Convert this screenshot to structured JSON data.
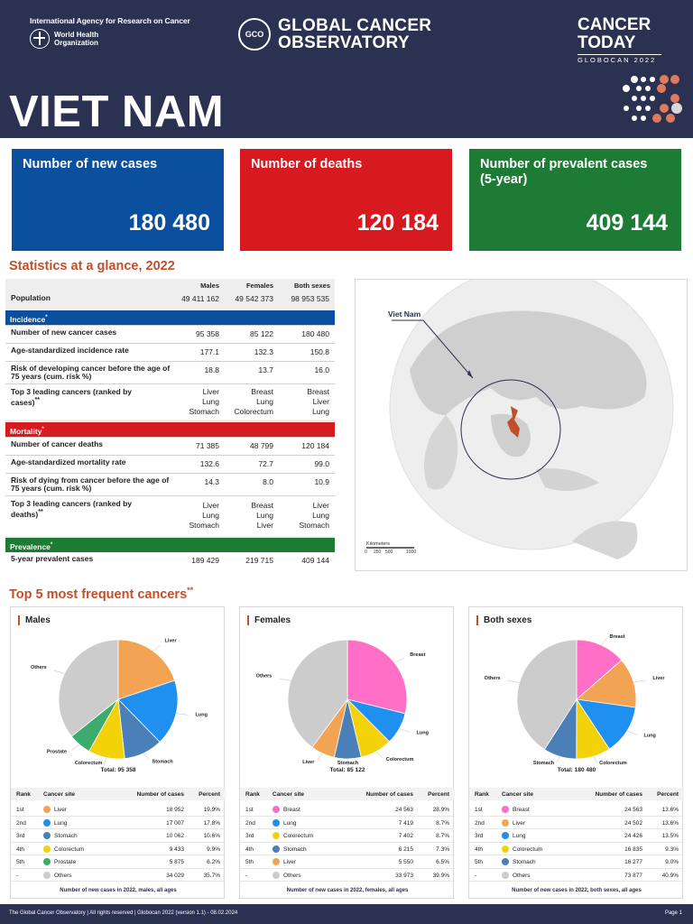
{
  "header": {
    "iarc_name": "International Agency for Research on Cancer",
    "who_name": "World Health Organization",
    "gco_logo": "GCO",
    "gco_name_1": "GLOBAL CANCER",
    "gco_name_2": "OBSERVATORY",
    "ct_title_1": "CANCER",
    "ct_title_2": "TODAY",
    "ct_sub": "GLOBOCAN 2022",
    "country": "VIET NAM"
  },
  "cards": [
    {
      "label": "Number of new cases",
      "value": "180 480",
      "color": "#0b4f9f"
    },
    {
      "label": "Number of deaths",
      "value": "120 184",
      "color": "#d71920"
    },
    {
      "label": "Number of prevalent cases (5-year)",
      "value": "409 144",
      "color": "#1e7b35"
    }
  ],
  "stats": {
    "title": "Statistics at a glance, 2022",
    "columns": [
      "Males",
      "Females",
      "Both sexes"
    ],
    "population": {
      "label": "Population",
      "values": [
        "49 411 162",
        "49 542 373",
        "98 953 535"
      ]
    },
    "incidence_band": "Incidence",
    "new_cases": {
      "label": "Number of new cancer cases",
      "values": [
        "95 358",
        "85 122",
        "180 480"
      ]
    },
    "asr_incidence": {
      "label": "Age-standardized incidence rate",
      "values": [
        "177.1",
        "132.3",
        "150.8"
      ]
    },
    "risk_dev": {
      "label": "Risk of developing cancer before the age of 75 years (cum. risk %)",
      "values": [
        "18.8",
        "13.7",
        "16.0"
      ]
    },
    "top3_cases": {
      "label": "Top 3 leading cancers (ranked by cases)",
      "values": [
        [
          "Liver",
          "Lung",
          "Stomach"
        ],
        [
          "Breast",
          "Lung",
          "Colorectum"
        ],
        [
          "Breast",
          "Liver",
          "Lung"
        ]
      ]
    },
    "mortality_band": "Mortality",
    "deaths": {
      "label": "Number of cancer deaths",
      "values": [
        "71 385",
        "48 799",
        "120 184"
      ]
    },
    "asr_mortality": {
      "label": "Age-standardized mortality rate",
      "values": [
        "132.6",
        "72.7",
        "99.0"
      ]
    },
    "risk_die": {
      "label": "Risk of dying from cancer before the age of 75 years (cum. risk %)",
      "values": [
        "14.3",
        "8.0",
        "10.9"
      ]
    },
    "top3_deaths": {
      "label": "Top 3 leading cancers (ranked by deaths)",
      "values": [
        [
          "Liver",
          "Lung",
          "Stomach"
        ],
        [
          "Breast",
          "Lung",
          "Liver"
        ],
        [
          "Liver",
          "Lung",
          "Stomach"
        ]
      ]
    },
    "prevalence_band": "Prevalence",
    "prevalent": {
      "label": "5-year prevalent cases",
      "values": [
        "189 429",
        "219 715",
        "409 144"
      ]
    }
  },
  "map": {
    "label": "Viet Nam",
    "scale_title": "Kilometers",
    "scale_ticks": [
      "0",
      "250",
      "500",
      "1000"
    ]
  },
  "top5_title": "Top 5 most frequent cancers",
  "colors": {
    "header_bg": "#2b3150",
    "accent": "#c0502b",
    "incidence": "#0b4f9f",
    "mortality": "#d71920",
    "prevalence": "#1e7b35",
    "Liver": "#f2a354",
    "Lung": "#1f8ff0",
    "Stomach": "#4a7fb8",
    "Colorectum": "#f4d20a",
    "Prostate": "#3cab6b",
    "Breast": "#ff6ec7",
    "Others": "#cccccc"
  },
  "chart_data": [
    {
      "type": "pie",
      "title": "Males",
      "total_label": "Total: 95 358",
      "slices": [
        {
          "name": "Liver",
          "value": 18952,
          "percent": 19.9
        },
        {
          "name": "Lung",
          "value": 17007,
          "percent": 17.8
        },
        {
          "name": "Stomach",
          "value": 10062,
          "percent": 10.6
        },
        {
          "name": "Colorectum",
          "value": 9433,
          "percent": 9.9
        },
        {
          "name": "Prostate",
          "value": 5875,
          "percent": 6.2
        },
        {
          "name": "Others",
          "value": 34029,
          "percent": 35.7
        }
      ],
      "table_rows": [
        {
          "rank": "1st",
          "site": "Liver",
          "cases": "18 952",
          "percent": "19.9%"
        },
        {
          "rank": "2nd",
          "site": "Lung",
          "cases": "17 007",
          "percent": "17.8%"
        },
        {
          "rank": "3rd",
          "site": "Stomach",
          "cases": "10 062",
          "percent": "10.6%"
        },
        {
          "rank": "4th",
          "site": "Colorectum",
          "cases": "9 433",
          "percent": "9.9%"
        },
        {
          "rank": "5th",
          "site": "Prostate",
          "cases": "5 875",
          "percent": "6.2%"
        },
        {
          "rank": "-",
          "site": "Others",
          "cases": "34 029",
          "percent": "35.7%"
        }
      ],
      "note": "Number of new cases in 2022, males, all ages"
    },
    {
      "type": "pie",
      "title": "Females",
      "total_label": "Total: 85 122",
      "slices": [
        {
          "name": "Breast",
          "value": 24563,
          "percent": 28.9
        },
        {
          "name": "Lung",
          "value": 7419,
          "percent": 8.7
        },
        {
          "name": "Colorectum",
          "value": 7402,
          "percent": 8.7
        },
        {
          "name": "Stomach",
          "value": 6215,
          "percent": 7.3
        },
        {
          "name": "Liver",
          "value": 5550,
          "percent": 6.5
        },
        {
          "name": "Others",
          "value": 33973,
          "percent": 39.9
        }
      ],
      "table_rows": [
        {
          "rank": "1st",
          "site": "Breast",
          "cases": "24 563",
          "percent": "28.9%"
        },
        {
          "rank": "2nd",
          "site": "Lung",
          "cases": "7 419",
          "percent": "8.7%"
        },
        {
          "rank": "3rd",
          "site": "Colorectum",
          "cases": "7 402",
          "percent": "8.7%"
        },
        {
          "rank": "4th",
          "site": "Stomach",
          "cases": "6 215",
          "percent": "7.3%"
        },
        {
          "rank": "5th",
          "site": "Liver",
          "cases": "5 550",
          "percent": "6.5%"
        },
        {
          "rank": "-",
          "site": "Others",
          "cases": "33 973",
          "percent": "39.9%"
        }
      ],
      "note": "Number of new cases in 2022, females, all ages"
    },
    {
      "type": "pie",
      "title": "Both sexes",
      "total_label": "Total: 180 480",
      "slices": [
        {
          "name": "Breast",
          "value": 24563,
          "percent": 13.6
        },
        {
          "name": "Liver",
          "value": 24502,
          "percent": 13.6
        },
        {
          "name": "Lung",
          "value": 24426,
          "percent": 13.5
        },
        {
          "name": "Colorectum",
          "value": 16835,
          "percent": 9.3
        },
        {
          "name": "Stomach",
          "value": 16277,
          "percent": 9.0
        },
        {
          "name": "Others",
          "value": 73877,
          "percent": 40.9
        }
      ],
      "table_rows": [
        {
          "rank": "1st",
          "site": "Breast",
          "cases": "24 563",
          "percent": "13.6%"
        },
        {
          "rank": "2nd",
          "site": "Liver",
          "cases": "24 502",
          "percent": "13.6%"
        },
        {
          "rank": "3rd",
          "site": "Lung",
          "cases": "24 426",
          "percent": "13.5%"
        },
        {
          "rank": "4th",
          "site": "Colorectum",
          "cases": "16 835",
          "percent": "9.3%"
        },
        {
          "rank": "5th",
          "site": "Stomach",
          "cases": "16 277",
          "percent": "9.0%"
        },
        {
          "rank": "-",
          "site": "Others",
          "cases": "73 877",
          "percent": "40.9%"
        }
      ],
      "note": "Number of new cases in 2022, both sexes, all ages"
    }
  ],
  "table_headers": {
    "rank": "Rank",
    "site": "Cancer site",
    "cases": "Number of cases",
    "percent": "Percent"
  },
  "footer": {
    "left": "The Global Cancer Observatory | All rights reserved | Globocan 2022 (version 1.1) - 08.02.2024",
    "right": "Page 1"
  }
}
